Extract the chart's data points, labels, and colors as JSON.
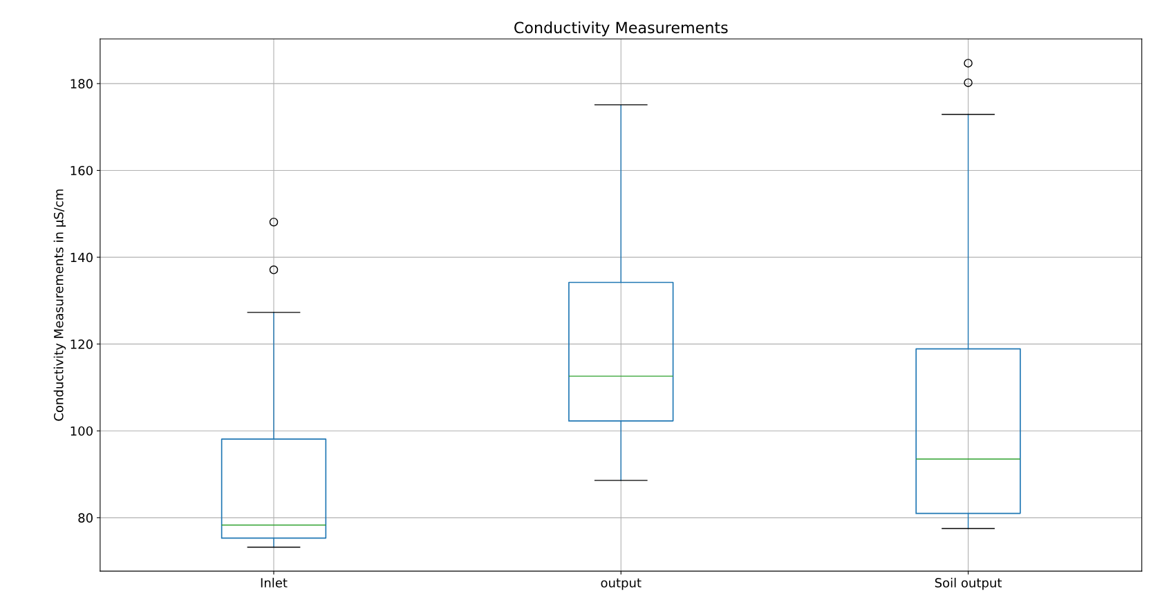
{
  "chart_data": {
    "type": "box",
    "title": "Conductivity Measurements",
    "ylabel": "Conductivity Measurements in µS/cm",
    "categories": [
      "Inlet",
      "output",
      "Soil output"
    ],
    "series": [
      {
        "color": "#1f77b4",
        "boxes": [
          {
            "low": 73.2,
            "q1": 75.3,
            "median": 78.3,
            "q3": 98.1,
            "high": 127.3,
            "outliers": [
              137.1,
              148.1
            ]
          },
          {
            "low": 88.6,
            "q1": 102.3,
            "median": 112.6,
            "q3": 134.2,
            "high": 175.1
          },
          {
            "low": 77.5,
            "q1": 81.0,
            "median": 93.5,
            "q3": 118.9,
            "high": 172.9,
            "outliers": [
              180.2,
              184.7
            ]
          }
        ]
      }
    ],
    "ylim": [
      67.7,
      190.3
    ],
    "yticks": [
      80,
      100,
      120,
      140,
      160,
      180
    ],
    "grid": true
  }
}
